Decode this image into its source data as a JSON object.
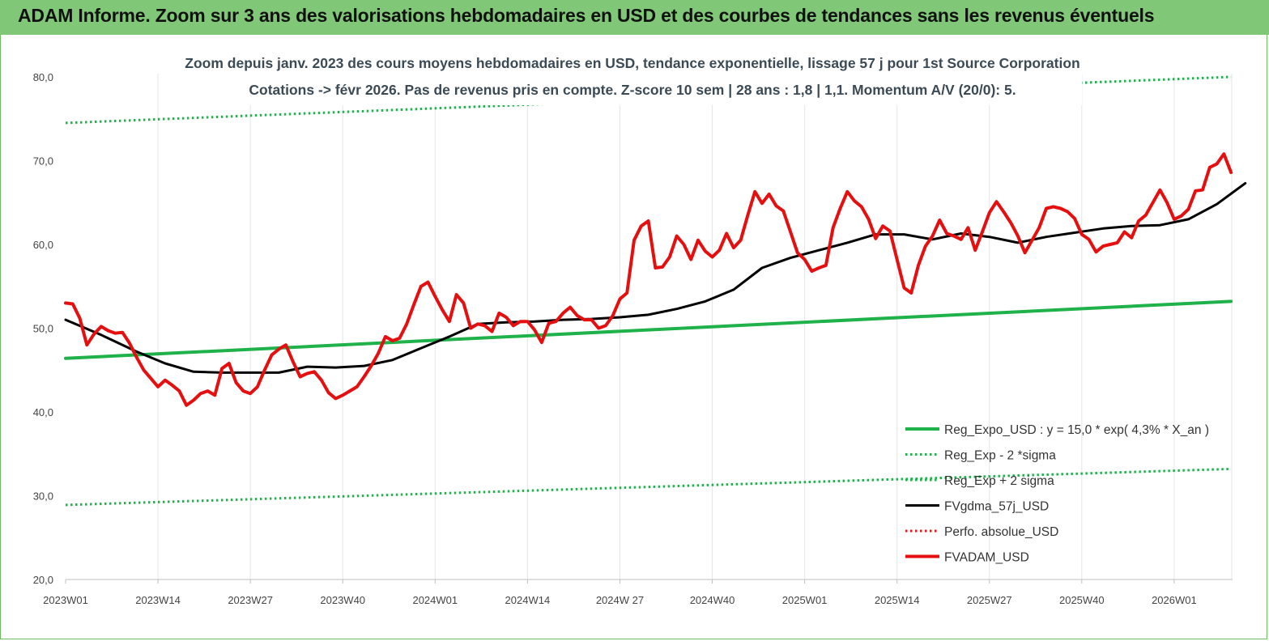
{
  "banner": {
    "title": "ADAM Informe. Zoom sur 3 ans des valorisations hebdomadaires en USD et des courbes de tendances sans les revenus éventuels"
  },
  "chart_data": {
    "type": "line",
    "title_line1": "Zoom depuis janv. 2023 des cours moyens hebdomadaires en USD, tendance exponentielle, lissage 57 j pour 1st Source Corporation",
    "title_line2": "Cotations -> févr 2026. Pas de revenus pris en compte. Z-score 10 sem | 28 ans : 1,8 | 1,1. Momentum A/V (20/0): 5.",
    "ylim": [
      20,
      80
    ],
    "yticks": [
      "80,0",
      "70,0",
      "60,0",
      "50,0",
      "40,0",
      "30,0",
      "20,0"
    ],
    "xticks": [
      "2023W01",
      "2023W14",
      "2023W27",
      "2023W40",
      "2024W01",
      "2024W14",
      "2024W 27",
      "2024W40",
      "2025W01",
      "2025W14",
      "2025W27",
      "2025W40",
      "2026W01"
    ],
    "week_count": 165,
    "grid": "vertical",
    "legend_position": "bottom-right",
    "series": [
      {
        "name": "Reg_Expo_USD : y = 15,0 * exp( 4,3% *  X_an )",
        "color": "#1fb14a",
        "style": "solid-thick",
        "points": [
          [
            0,
            46.4
          ],
          [
            164,
            53.2
          ]
        ]
      },
      {
        "name": "Reg_Exp - 2 *sigma",
        "color": "#1fb14a",
        "style": "dotted",
        "points": [
          [
            0,
            28.9
          ],
          [
            164,
            33.2
          ]
        ]
      },
      {
        "name": "Reg_Exp + 2 sigma",
        "color": "#1fb14a",
        "style": "dotted",
        "points": [
          [
            0,
            74.5
          ],
          [
            164,
            80.0
          ]
        ]
      },
      {
        "name": "FVgdma_57j_USD",
        "color": "#000000",
        "style": "solid",
        "points": [
          [
            0,
            51.0
          ],
          [
            5,
            49.2
          ],
          [
            10,
            47.2
          ],
          [
            14,
            45.8
          ],
          [
            18,
            44.8
          ],
          [
            22,
            44.7
          ],
          [
            26,
            44.7
          ],
          [
            30,
            44.7
          ],
          [
            34,
            45.4
          ],
          [
            38,
            45.3
          ],
          [
            42,
            45.5
          ],
          [
            46,
            46.2
          ],
          [
            50,
            47.6
          ],
          [
            54,
            49.0
          ],
          [
            58,
            50.5
          ],
          [
            62,
            50.7
          ],
          [
            66,
            50.8
          ],
          [
            70,
            51.0
          ],
          [
            74,
            51.1
          ],
          [
            78,
            51.3
          ],
          [
            82,
            51.6
          ],
          [
            86,
            52.3
          ],
          [
            90,
            53.2
          ],
          [
            94,
            54.6
          ],
          [
            98,
            57.2
          ],
          [
            102,
            58.4
          ],
          [
            106,
            59.3
          ],
          [
            110,
            60.2
          ],
          [
            114,
            61.2
          ],
          [
            118,
            61.2
          ],
          [
            122,
            60.6
          ],
          [
            126,
            61.3
          ],
          [
            130,
            60.9
          ],
          [
            134,
            60.2
          ],
          [
            138,
            60.9
          ],
          [
            142,
            61.4
          ],
          [
            146,
            61.9
          ],
          [
            150,
            62.2
          ],
          [
            154,
            62.3
          ],
          [
            158,
            63.0
          ],
          [
            162,
            64.8
          ],
          [
            166,
            67.3
          ]
        ]
      },
      {
        "name": "Perfo. absolue_USD",
        "color": "#e0191c",
        "style": "dotted",
        "points": []
      },
      {
        "name": "FVADAM_USD",
        "color": "#e60f0f",
        "style": "solid-thick",
        "points": [
          [
            0,
            53.0
          ],
          [
            1,
            52.9
          ],
          [
            2,
            51.2
          ],
          [
            3,
            48.0
          ],
          [
            4,
            49.3
          ],
          [
            5,
            50.2
          ],
          [
            6,
            49.7
          ],
          [
            7,
            49.4
          ],
          [
            8,
            49.5
          ],
          [
            9,
            48.2
          ],
          [
            10,
            46.5
          ],
          [
            11,
            45.0
          ],
          [
            12,
            44.0
          ],
          [
            13,
            43.0
          ],
          [
            14,
            43.8
          ],
          [
            15,
            43.2
          ],
          [
            16,
            42.5
          ],
          [
            17,
            40.8
          ],
          [
            18,
            41.4
          ],
          [
            19,
            42.2
          ],
          [
            20,
            42.5
          ],
          [
            21,
            42.0
          ],
          [
            22,
            45.2
          ],
          [
            23,
            45.8
          ],
          [
            24,
            43.5
          ],
          [
            25,
            42.5
          ],
          [
            26,
            42.2
          ],
          [
            27,
            43.0
          ],
          [
            28,
            45.0
          ],
          [
            29,
            46.8
          ],
          [
            30,
            47.5
          ],
          [
            31,
            48.0
          ],
          [
            32,
            46.0
          ],
          [
            33,
            44.2
          ],
          [
            34,
            44.6
          ],
          [
            35,
            44.8
          ],
          [
            36,
            43.8
          ],
          [
            37,
            42.3
          ],
          [
            38,
            41.6
          ],
          [
            39,
            42.0
          ],
          [
            40,
            42.5
          ],
          [
            41,
            43.0
          ],
          [
            42,
            44.2
          ],
          [
            43,
            45.5
          ],
          [
            44,
            47.0
          ],
          [
            45,
            49.0
          ],
          [
            46,
            48.5
          ],
          [
            47,
            48.8
          ],
          [
            48,
            50.5
          ],
          [
            49,
            52.8
          ],
          [
            50,
            55.0
          ],
          [
            51,
            55.5
          ],
          [
            52,
            53.8
          ],
          [
            53,
            52.2
          ],
          [
            54,
            50.8
          ],
          [
            55,
            54.0
          ],
          [
            56,
            53.0
          ],
          [
            57,
            50.0
          ],
          [
            58,
            50.5
          ],
          [
            59,
            50.3
          ],
          [
            60,
            49.6
          ],
          [
            61,
            51.8
          ],
          [
            62,
            51.3
          ],
          [
            63,
            50.3
          ],
          [
            64,
            50.8
          ],
          [
            65,
            50.8
          ],
          [
            66,
            49.8
          ],
          [
            67,
            48.3
          ],
          [
            68,
            50.6
          ],
          [
            69,
            50.8
          ],
          [
            70,
            51.8
          ],
          [
            71,
            52.5
          ],
          [
            72,
            51.5
          ],
          [
            73,
            51.0
          ],
          [
            74,
            51.0
          ],
          [
            75,
            50.0
          ],
          [
            76,
            50.3
          ],
          [
            77,
            51.5
          ],
          [
            78,
            53.5
          ],
          [
            79,
            54.2
          ],
          [
            80,
            60.5
          ],
          [
            81,
            62.2
          ],
          [
            82,
            62.8
          ],
          [
            83,
            57.2
          ],
          [
            84,
            57.3
          ],
          [
            85,
            58.5
          ],
          [
            86,
            61.0
          ],
          [
            87,
            60.0
          ],
          [
            88,
            58.2
          ],
          [
            89,
            60.5
          ],
          [
            90,
            59.2
          ],
          [
            91,
            58.5
          ],
          [
            92,
            59.3
          ],
          [
            93,
            61.3
          ],
          [
            94,
            59.6
          ],
          [
            95,
            60.5
          ],
          [
            96,
            63.5
          ],
          [
            97,
            66.3
          ],
          [
            98,
            64.9
          ],
          [
            99,
            66.0
          ],
          [
            100,
            64.6
          ],
          [
            101,
            64.0
          ],
          [
            102,
            61.5
          ],
          [
            103,
            59.0
          ],
          [
            104,
            58.2
          ],
          [
            105,
            56.8
          ],
          [
            106,
            57.2
          ],
          [
            107,
            57.5
          ],
          [
            108,
            62.0
          ],
          [
            109,
            64.3
          ],
          [
            110,
            66.3
          ],
          [
            111,
            65.2
          ],
          [
            112,
            64.5
          ],
          [
            113,
            63.0
          ],
          [
            114,
            60.7
          ],
          [
            115,
            62.2
          ],
          [
            116,
            61.6
          ],
          [
            117,
            58.2
          ],
          [
            118,
            54.8
          ],
          [
            119,
            54.2
          ],
          [
            120,
            57.5
          ],
          [
            121,
            59.8
          ],
          [
            122,
            61.0
          ],
          [
            123,
            62.9
          ],
          [
            124,
            61.3
          ],
          [
            125,
            61.0
          ],
          [
            126,
            60.6
          ],
          [
            127,
            62.0
          ],
          [
            128,
            59.3
          ],
          [
            129,
            61.5
          ],
          [
            130,
            63.8
          ],
          [
            131,
            65.1
          ],
          [
            132,
            63.9
          ],
          [
            133,
            62.6
          ],
          [
            134,
            61.0
          ],
          [
            135,
            59.0
          ],
          [
            136,
            60.5
          ],
          [
            137,
            62.0
          ],
          [
            138,
            64.3
          ],
          [
            139,
            64.5
          ],
          [
            140,
            64.3
          ],
          [
            141,
            63.9
          ],
          [
            142,
            63.1
          ],
          [
            143,
            61.2
          ],
          [
            144,
            60.6
          ],
          [
            145,
            59.1
          ],
          [
            146,
            59.8
          ],
          [
            147,
            60.0
          ],
          [
            148,
            60.2
          ],
          [
            149,
            61.5
          ],
          [
            150,
            60.8
          ],
          [
            151,
            62.8
          ],
          [
            152,
            63.5
          ],
          [
            153,
            65.0
          ],
          [
            154,
            66.5
          ],
          [
            155,
            65.0
          ],
          [
            156,
            63.0
          ],
          [
            157,
            63.4
          ],
          [
            158,
            64.2
          ],
          [
            159,
            66.4
          ],
          [
            160,
            66.5
          ],
          [
            161,
            69.2
          ],
          [
            162,
            69.6
          ],
          [
            163,
            70.8
          ],
          [
            164,
            68.6
          ]
        ]
      }
    ]
  }
}
